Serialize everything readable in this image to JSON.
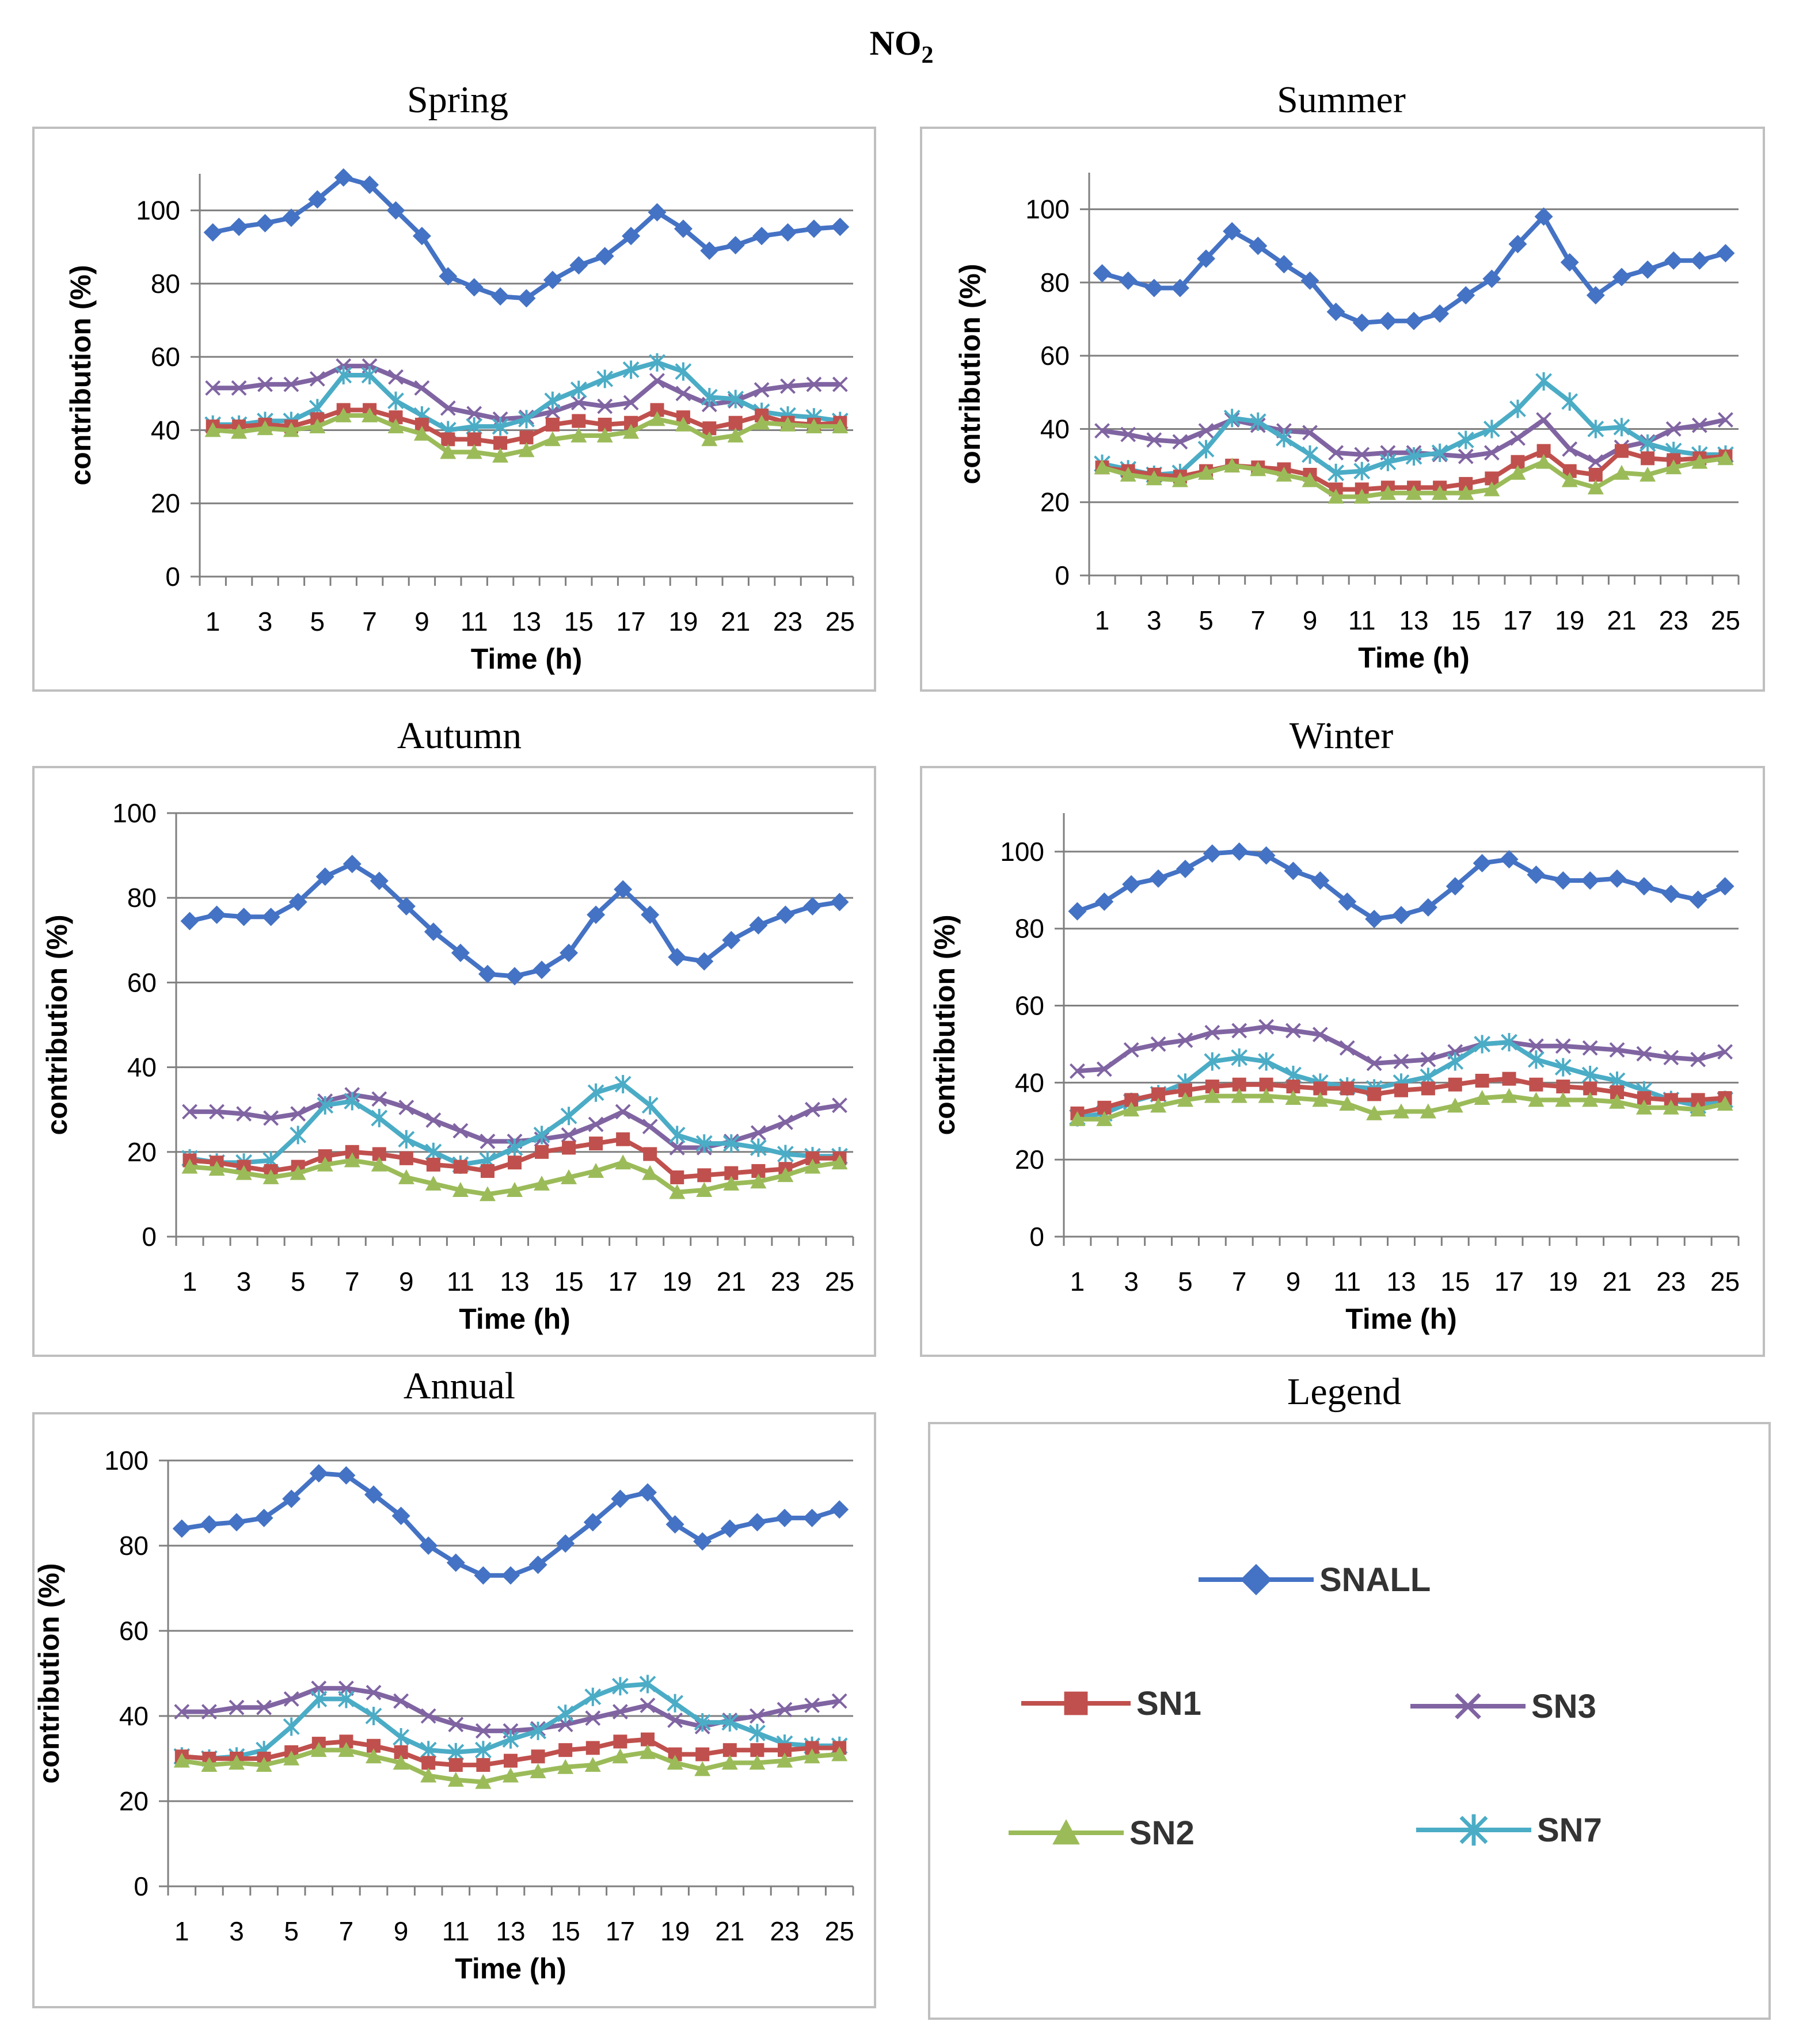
{
  "figure": {
    "title": "NO",
    "title_sub": "2",
    "legend_panel_title": "Legend"
  },
  "colors": {
    "SNALL": "#4472C4",
    "SN1": "#C0504D",
    "SN2": "#9BBB59",
    "SN3": "#8064A2",
    "SN7": "#4BACC6"
  },
  "legend": [
    {
      "name": "SNALL",
      "marker": "diamond"
    },
    {
      "name": "SN1",
      "marker": "square"
    },
    {
      "name": "SN3",
      "marker": "x"
    },
    {
      "name": "SN2",
      "marker": "triangle"
    },
    {
      "name": "SN7",
      "marker": "star"
    }
  ],
  "chart_data": [
    {
      "type": "line",
      "title": "Spring",
      "xlabel": "Time (h)",
      "ylabel": "contribution (%)",
      "ylim": [
        0,
        110
      ],
      "yticks": [
        0,
        20,
        40,
        60,
        80,
        100
      ],
      "xticks": [
        1,
        3,
        5,
        7,
        9,
        11,
        13,
        15,
        17,
        19,
        21,
        23,
        25
      ],
      "series": [
        {
          "name": "SNALL",
          "values": [
            94,
            95.5,
            96.5,
            98,
            103,
            109,
            107,
            100,
            93,
            82,
            79,
            76.5,
            76,
            81,
            85,
            87.5,
            93,
            99.5,
            95,
            89,
            90.5,
            93,
            94,
            95,
            95.5
          ]
        },
        {
          "name": "SN3",
          "values": [
            51.5,
            51.5,
            52.5,
            52.5,
            54,
            57.5,
            57.5,
            54.5,
            51.5,
            46,
            44.5,
            43,
            43.5,
            45,
            47.5,
            46.5,
            47.5,
            53.5,
            50,
            47,
            48,
            51,
            52,
            52.5,
            52.5
          ]
        },
        {
          "name": "SN7",
          "values": [
            41.5,
            41.5,
            42.5,
            42.5,
            46,
            55,
            55,
            48,
            44,
            40,
            41,
            41,
            43,
            48,
            51,
            54,
            56.5,
            58.5,
            56,
            49,
            48.5,
            45,
            44,
            43.5,
            42.5
          ]
        },
        {
          "name": "SN1",
          "values": [
            41,
            41,
            41.5,
            41,
            43,
            45.5,
            45.5,
            43.5,
            41.5,
            37.5,
            37.5,
            36.5,
            38,
            41.5,
            42.5,
            41.5,
            42,
            45.5,
            43.5,
            40.5,
            42,
            44,
            42,
            41.5,
            42
          ]
        },
        {
          "name": "SN2",
          "values": [
            40,
            39.5,
            40.5,
            40,
            41,
            44,
            44,
            41,
            39,
            34,
            34,
            33,
            34.5,
            37.5,
            38.5,
            38.5,
            39.5,
            43,
            41.5,
            37.5,
            38.5,
            42,
            41.5,
            41,
            41
          ]
        }
      ]
    },
    {
      "type": "line",
      "title": "Summer",
      "xlabel": "Time (h)",
      "ylabel": "contribution (%)",
      "ylim": [
        0,
        110
      ],
      "yticks": [
        0,
        20,
        40,
        60,
        80,
        100
      ],
      "xticks": [
        1,
        3,
        5,
        7,
        9,
        11,
        13,
        15,
        17,
        19,
        21,
        23,
        25
      ],
      "series": [
        {
          "name": "SNALL",
          "values": [
            82.5,
            80.5,
            78.5,
            78.5,
            86.5,
            94,
            90,
            85,
            80.5,
            72,
            69,
            69.5,
            69.5,
            71.5,
            76.5,
            81,
            90.5,
            98,
            85.5,
            76.5,
            81.5,
            83.5,
            86,
            86,
            88
          ]
        },
        {
          "name": "SN3",
          "values": [
            39.5,
            38.5,
            37,
            36.5,
            39.5,
            42.5,
            41,
            39.5,
            39,
            33.5,
            33,
            33.5,
            33.5,
            33,
            32.5,
            33.5,
            37.5,
            42.5,
            34.5,
            31,
            35,
            36.5,
            40,
            41,
            42.5
          ]
        },
        {
          "name": "SN7",
          "values": [
            30.5,
            29,
            27.5,
            28,
            34.5,
            43,
            42,
            37.5,
            33,
            28,
            28.5,
            31,
            32.5,
            33.5,
            37,
            40,
            45.5,
            53,
            47.5,
            40,
            40.5,
            36,
            34,
            33,
            33
          ]
        },
        {
          "name": "SN1",
          "values": [
            29.5,
            28.5,
            27.5,
            27,
            28.5,
            30,
            29.5,
            29,
            27.5,
            23.5,
            23.5,
            24,
            24,
            24,
            25,
            26.5,
            31,
            34,
            28.5,
            27.5,
            34,
            32,
            31.5,
            32,
            32.5
          ]
        },
        {
          "name": "SN2",
          "values": [
            29.5,
            27.5,
            26.5,
            26,
            28,
            30,
            29,
            27.5,
            26,
            21.5,
            21.5,
            22.5,
            22.5,
            22.5,
            22.5,
            23.5,
            28,
            31,
            26,
            24,
            28,
            27.5,
            29.5,
            31,
            32
          ]
        }
      ]
    },
    {
      "type": "line",
      "title": "Autumn",
      "xlabel": "Time (h)",
      "ylabel": "contribution (%)",
      "ylim": [
        0,
        100
      ],
      "yticks": [
        0,
        20,
        40,
        60,
        80,
        100
      ],
      "xticks": [
        1,
        3,
        5,
        7,
        9,
        11,
        13,
        15,
        17,
        19,
        21,
        23,
        25
      ],
      "series": [
        {
          "name": "SNALL",
          "values": [
            74.5,
            76,
            75.5,
            75.5,
            79,
            85,
            88,
            84,
            78,
            72,
            67,
            62,
            61.5,
            63,
            67,
            76,
            82,
            76,
            66,
            65,
            70,
            73.5,
            76,
            78,
            79
          ]
        },
        {
          "name": "SN3",
          "values": [
            29.5,
            29.5,
            29,
            28,
            29,
            32,
            33.5,
            32.5,
            30.5,
            27.5,
            25,
            22.5,
            22.5,
            23,
            24,
            26.5,
            29.5,
            26,
            21,
            21,
            22.5,
            24.5,
            27,
            30,
            31
          ]
        },
        {
          "name": "SN7",
          "values": [
            18.5,
            17.5,
            17.5,
            18,
            24,
            31,
            32,
            28,
            23,
            20,
            17,
            18,
            21,
            24,
            28.5,
            34,
            36,
            31,
            24,
            22,
            22,
            21,
            19.5,
            19,
            19
          ]
        },
        {
          "name": "SN1",
          "values": [
            18,
            17.5,
            16.5,
            15.5,
            16.5,
            19,
            20,
            19.5,
            18.5,
            17,
            16.5,
            15.5,
            17.5,
            20,
            21,
            22,
            23,
            19.5,
            14,
            14.5,
            15,
            15.5,
            16,
            18.5,
            18.5
          ]
        },
        {
          "name": "SN2",
          "values": [
            16.5,
            16,
            15,
            14,
            15,
            17,
            18,
            17,
            14,
            12.5,
            11,
            10,
            11,
            12.5,
            14,
            15.5,
            17.5,
            15,
            10.5,
            11,
            12.5,
            13,
            14.5,
            16.5,
            17.5
          ]
        }
      ]
    },
    {
      "type": "line",
      "title": "Winter",
      "xlabel": "Time (h)",
      "ylabel": "contribution (%)",
      "ylim": [
        0,
        110
      ],
      "yticks": [
        0,
        20,
        40,
        60,
        80,
        100
      ],
      "xticks": [
        1,
        3,
        5,
        7,
        9,
        11,
        13,
        15,
        17,
        19,
        21,
        23,
        25
      ],
      "series": [
        {
          "name": "SNALL",
          "values": [
            84.5,
            87,
            91.5,
            93,
            95.5,
            99.5,
            100,
            99,
            95,
            92.5,
            87,
            82.5,
            83.5,
            85.5,
            91,
            97,
            98,
            94,
            92.5,
            92.5,
            93,
            91,
            89,
            87.5,
            91
          ]
        },
        {
          "name": "SN3",
          "values": [
            43,
            43.5,
            48.5,
            50,
            51,
            53,
            53.5,
            54.5,
            53.5,
            52.5,
            49,
            45,
            45.5,
            46,
            48,
            50,
            50.5,
            49.5,
            49.5,
            49,
            48.5,
            47.5,
            46.5,
            46,
            48
          ]
        },
        {
          "name": "SN7",
          "values": [
            31,
            32,
            35,
            37,
            40,
            45.5,
            46.5,
            45.5,
            42,
            40,
            39,
            38.5,
            40,
            41.5,
            45.5,
            50,
            50.5,
            46,
            44,
            42,
            40.5,
            38,
            35.5,
            34,
            35.5
          ]
        },
        {
          "name": "SN1",
          "values": [
            32,
            33.5,
            35.5,
            37,
            38,
            39,
            39.5,
            39.5,
            39,
            38.5,
            38.5,
            37,
            38,
            38.5,
            39.5,
            40.5,
            41,
            39.5,
            39,
            38.5,
            37.5,
            36,
            35.5,
            35.5,
            36
          ]
        },
        {
          "name": "SN2",
          "values": [
            30.5,
            30.5,
            33,
            34,
            35.5,
            36.5,
            36.5,
            36.5,
            36,
            35.5,
            34.5,
            32,
            32.5,
            32.5,
            34,
            36,
            36.5,
            35.5,
            35.5,
            35.5,
            35,
            33.5,
            33.5,
            33,
            34.5
          ]
        }
      ]
    },
    {
      "type": "line",
      "title": "Annual",
      "xlabel": "Time (h)",
      "ylabel": "contribution (%)",
      "ylim": [
        0,
        100
      ],
      "yticks": [
        0,
        20,
        40,
        60,
        80,
        100
      ],
      "xticks": [
        1,
        3,
        5,
        7,
        9,
        11,
        13,
        15,
        17,
        19,
        21,
        23,
        25
      ],
      "series": [
        {
          "name": "SNALL",
          "values": [
            84,
            85,
            85.5,
            86.5,
            91,
            97,
            96.5,
            92,
            87,
            80,
            76,
            73,
            73,
            75.5,
            80.5,
            85.5,
            91,
            92.5,
            85,
            81,
            84,
            85.5,
            86.5,
            86.5,
            88.5
          ]
        },
        {
          "name": "SN3",
          "values": [
            41,
            41,
            42,
            42,
            44,
            46.5,
            46.5,
            45.5,
            43.5,
            40,
            38,
            36.5,
            36.5,
            37,
            38,
            39.5,
            41,
            42.5,
            39,
            37.5,
            39,
            40,
            41.5,
            42.5,
            43.5
          ]
        },
        {
          "name": "SN7",
          "values": [
            30.5,
            30,
            30.5,
            32,
            37.5,
            44,
            44,
            40,
            35,
            32,
            31.5,
            32,
            34.5,
            36.5,
            40.5,
            44.5,
            47,
            47.5,
            43,
            38.5,
            38.5,
            36,
            33.5,
            33,
            33
          ]
        },
        {
          "name": "SN1",
          "values": [
            30.5,
            30,
            30,
            30,
            31.5,
            33.5,
            34,
            33,
            31.5,
            29,
            28.5,
            28.5,
            29.5,
            30.5,
            32,
            32.5,
            34,
            34.5,
            31,
            31,
            32,
            32,
            32,
            32.5,
            32.5
          ]
        },
        {
          "name": "SN2",
          "values": [
            29.5,
            28.5,
            29,
            28.5,
            30,
            32,
            32,
            30.5,
            29,
            26,
            25,
            24.5,
            26,
            27,
            28,
            28.5,
            30.5,
            31.5,
            29,
            27.5,
            29,
            29,
            29.5,
            30.5,
            31
          ]
        }
      ]
    }
  ]
}
